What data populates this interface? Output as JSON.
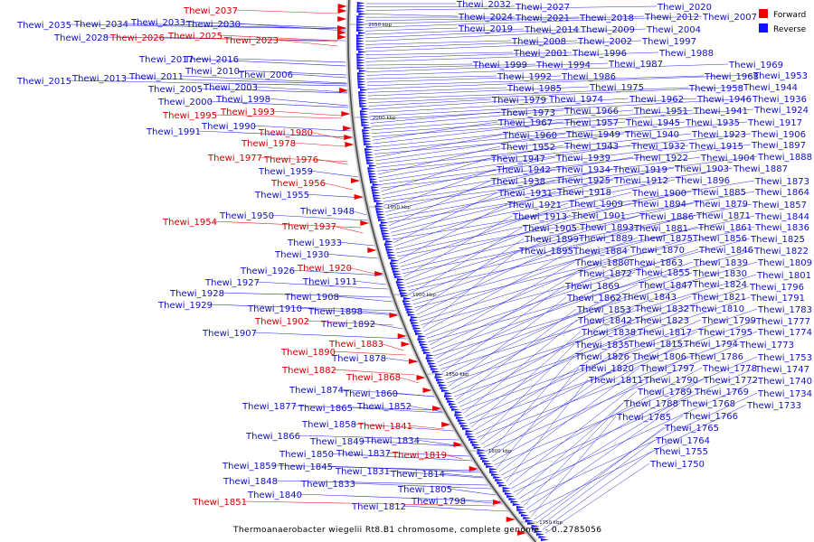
{
  "caption": "Thermoanaerobacter wiegelii Rt8.B1 chromosome, complete genome. - 0..2785056",
  "legend": [
    {
      "label": "Forward",
      "color": "#ee0000"
    },
    {
      "label": "Reverse",
      "color": "#1010ff"
    }
  ],
  "ticks": [
    "2050 kbp",
    "2000 kbp",
    "1950 kbp",
    "1900 kbp",
    "1850 kbp",
    "1800 kbp",
    "1750 kbp"
  ],
  "left_labels": [
    {
      "text": "Thewi_2037",
      "strand": "forward"
    },
    {
      "text": "Thewi_2035",
      "strand": "reverse"
    },
    {
      "text": "Thewi_2034",
      "strand": "reverse"
    },
    {
      "text": "Thewi_2033",
      "strand": "reverse"
    },
    {
      "text": "Thewi_2030",
      "strand": "reverse"
    },
    {
      "text": "Thewi_2028",
      "strand": "reverse"
    },
    {
      "text": "Thewi_2026",
      "strand": "forward"
    },
    {
      "text": "Thewi_2025",
      "strand": "forward"
    },
    {
      "text": "Thewi_2023",
      "strand": "forward"
    },
    {
      "text": "Thewi_2017",
      "strand": "reverse"
    },
    {
      "text": "Thewi_2016",
      "strand": "reverse"
    },
    {
      "text": "Thewi_2010",
      "strand": "reverse"
    },
    {
      "text": "Thewi_2015",
      "strand": "reverse"
    },
    {
      "text": "Thewi_2013",
      "strand": "reverse"
    },
    {
      "text": "Thewi_2011",
      "strand": "reverse"
    },
    {
      "text": "Thewi_2006",
      "strand": "reverse"
    },
    {
      "text": "Thewi_2005",
      "strand": "reverse"
    },
    {
      "text": "Thewi_2003",
      "strand": "reverse"
    },
    {
      "text": "Thewi_2000",
      "strand": "reverse"
    },
    {
      "text": "Thewi_1998",
      "strand": "reverse"
    },
    {
      "text": "Thewi_1995",
      "strand": "forward"
    },
    {
      "text": "Thewi_1993",
      "strand": "forward"
    },
    {
      "text": "Thewi_1990",
      "strand": "reverse"
    },
    {
      "text": "Thewi_1991",
      "strand": "reverse"
    },
    {
      "text": "Thewi_1980",
      "strand": "forward"
    },
    {
      "text": "Thewi_1978",
      "strand": "forward"
    },
    {
      "text": "Thewi_1977",
      "strand": "forward"
    },
    {
      "text": "Thewi_1976",
      "strand": "forward"
    },
    {
      "text": "Thewi_1959",
      "strand": "reverse"
    },
    {
      "text": "Thewi_1956",
      "strand": "forward"
    },
    {
      "text": "Thewi_1955",
      "strand": "reverse"
    },
    {
      "text": "Thewi_1948",
      "strand": "reverse"
    },
    {
      "text": "Thewi_1950",
      "strand": "reverse"
    },
    {
      "text": "Thewi_1954",
      "strand": "forward"
    },
    {
      "text": "Thewi_1937",
      "strand": "forward"
    },
    {
      "text": "Thewi_1933",
      "strand": "reverse"
    },
    {
      "text": "Thewi_1930",
      "strand": "reverse"
    },
    {
      "text": "Thewi_1926",
      "strand": "reverse"
    },
    {
      "text": "Thewi_1920",
      "strand": "forward"
    },
    {
      "text": "Thewi_1927",
      "strand": "reverse"
    },
    {
      "text": "Thewi_1911",
      "strand": "reverse"
    },
    {
      "text": "Thewi_1928",
      "strand": "reverse"
    },
    {
      "text": "Thewi_1908",
      "strand": "reverse"
    },
    {
      "text": "Thewi_1929",
      "strand": "reverse"
    },
    {
      "text": "Thewi_1910",
      "strand": "reverse"
    },
    {
      "text": "Thewi_1898",
      "strand": "reverse"
    },
    {
      "text": "Thewi_1902",
      "strand": "forward"
    },
    {
      "text": "Thewi_1892",
      "strand": "reverse"
    },
    {
      "text": "Thewi_1907",
      "strand": "reverse"
    },
    {
      "text": "Thewi_1883",
      "strand": "forward"
    },
    {
      "text": "Thewi_1890",
      "strand": "forward"
    },
    {
      "text": "Thewi_1878",
      "strand": "reverse"
    },
    {
      "text": "Thewi_1882",
      "strand": "forward"
    },
    {
      "text": "Thewi_1868",
      "strand": "forward"
    },
    {
      "text": "Thewi_1874",
      "strand": "reverse"
    },
    {
      "text": "Thewi_1860",
      "strand": "reverse"
    },
    {
      "text": "Thewi_1877",
      "strand": "reverse"
    },
    {
      "text": "Thewi_1865",
      "strand": "reverse"
    },
    {
      "text": "Thewi_1852",
      "strand": "reverse"
    },
    {
      "text": "Thewi_1858",
      "strand": "reverse"
    },
    {
      "text": "Thewi_1841",
      "strand": "forward"
    },
    {
      "text": "Thewi_1866",
      "strand": "reverse"
    },
    {
      "text": "Thewi_1849",
      "strand": "reverse"
    },
    {
      "text": "Thewi_1834",
      "strand": "reverse"
    },
    {
      "text": "Thewi_1850",
      "strand": "reverse"
    },
    {
      "text": "Thewi_1837",
      "strand": "reverse"
    },
    {
      "text": "Thewi_1819",
      "strand": "forward"
    },
    {
      "text": "Thewi_1859",
      "strand": "reverse"
    },
    {
      "text": "Thewi_1845",
      "strand": "reverse"
    },
    {
      "text": "Thewi_1831",
      "strand": "reverse"
    },
    {
      "text": "Thewi_1814",
      "strand": "reverse"
    },
    {
      "text": "Thewi_1848",
      "strand": "reverse"
    },
    {
      "text": "Thewi_1833",
      "strand": "reverse"
    },
    {
      "text": "Thewi_1805",
      "strand": "reverse"
    },
    {
      "text": "Thewi_1840",
      "strand": "reverse"
    },
    {
      "text": "Thewi_1798",
      "strand": "reverse"
    },
    {
      "text": "Thewi_1851",
      "strand": "forward"
    },
    {
      "text": "Thewi_1812",
      "strand": "reverse"
    }
  ],
  "right_labels": [
    {
      "text": "Thewi_2032",
      "strand": "reverse"
    },
    {
      "text": "Thewi_2027",
      "strand": "reverse"
    },
    {
      "text": "Thewi_2020",
      "strand": "reverse"
    },
    {
      "text": "Thewi_2024",
      "strand": "reverse"
    },
    {
      "text": "Thewi_2021",
      "strand": "reverse"
    },
    {
      "text": "Thewi_2018",
      "strand": "reverse"
    },
    {
      "text": "Thewi_2012",
      "strand": "reverse"
    },
    {
      "text": "Thewi_2007",
      "strand": "reverse"
    },
    {
      "text": "Thewi_2019",
      "strand": "reverse"
    },
    {
      "text": "Thewi_2014",
      "strand": "reverse"
    },
    {
      "text": "Thewi_2009",
      "strand": "reverse"
    },
    {
      "text": "Thewi_2004",
      "strand": "reverse"
    },
    {
      "text": "Thewi_2008",
      "strand": "reverse"
    },
    {
      "text": "Thewi_2002",
      "strand": "reverse"
    },
    {
      "text": "Thewi_1997",
      "strand": "reverse"
    },
    {
      "text": "Thewi_2001",
      "strand": "reverse"
    },
    {
      "text": "Thewi_1996",
      "strand": "reverse"
    },
    {
      "text": "Thewi_1988",
      "strand": "reverse"
    },
    {
      "text": "Thewi_1999",
      "strand": "reverse"
    },
    {
      "text": "Thewi_1994",
      "strand": "reverse"
    },
    {
      "text": "Thewi_1987",
      "strand": "reverse"
    },
    {
      "text": "Thewi_1969",
      "strand": "reverse"
    },
    {
      "text": "Thewi_1992",
      "strand": "reverse"
    },
    {
      "text": "Thewi_1986",
      "strand": "reverse"
    },
    {
      "text": "Thewi_1968",
      "strand": "reverse"
    },
    {
      "text": "Thewi_1953",
      "strand": "reverse"
    },
    {
      "text": "Thewi_1985",
      "strand": "reverse"
    },
    {
      "text": "Thewi_1975",
      "strand": "reverse"
    },
    {
      "text": "Thewi_1958",
      "strand": "reverse"
    },
    {
      "text": "Thewi_1944",
      "strand": "reverse"
    },
    {
      "text": "Thewi_1979",
      "strand": "reverse"
    },
    {
      "text": "Thewi_1974",
      "strand": "reverse"
    },
    {
      "text": "Thewi_1962",
      "strand": "reverse"
    },
    {
      "text": "Thewi_1946",
      "strand": "reverse"
    },
    {
      "text": "Thewi_1936",
      "strand": "reverse"
    },
    {
      "text": "Thewi_1973",
      "strand": "reverse"
    },
    {
      "text": "Thewi_1966",
      "strand": "reverse"
    },
    {
      "text": "Thewi_1951",
      "strand": "reverse"
    },
    {
      "text": "Thewi_1941",
      "strand": "reverse"
    },
    {
      "text": "Thewi_1924",
      "strand": "reverse"
    },
    {
      "text": "Thewi_1967",
      "strand": "reverse"
    },
    {
      "text": "Thewi_1957",
      "strand": "reverse"
    },
    {
      "text": "Thewi_1945",
      "strand": "reverse"
    },
    {
      "text": "Thewi_1935",
      "strand": "reverse"
    },
    {
      "text": "Thewi_1917",
      "strand": "reverse"
    },
    {
      "text": "Thewi_1960",
      "strand": "reverse"
    },
    {
      "text": "Thewi_1949",
      "strand": "reverse"
    },
    {
      "text": "Thewi_1940",
      "strand": "reverse"
    },
    {
      "text": "Thewi_1923",
      "strand": "reverse"
    },
    {
      "text": "Thewi_1906",
      "strand": "reverse"
    },
    {
      "text": "Thewi_1952",
      "strand": "reverse"
    },
    {
      "text": "Thewi_1943",
      "strand": "reverse"
    },
    {
      "text": "Thewi_1932",
      "strand": "reverse"
    },
    {
      "text": "Thewi_1915",
      "strand": "reverse"
    },
    {
      "text": "Thewi_1897",
      "strand": "reverse"
    },
    {
      "text": "Thewi_1947",
      "strand": "reverse"
    },
    {
      "text": "Thewi_1939",
      "strand": "reverse"
    },
    {
      "text": "Thewi_1922",
      "strand": "reverse"
    },
    {
      "text": "Thewi_1904",
      "strand": "reverse"
    },
    {
      "text": "Thewi_1888",
      "strand": "reverse"
    },
    {
      "text": "Thewi_1942",
      "strand": "reverse"
    },
    {
      "text": "Thewi_1934",
      "strand": "reverse"
    },
    {
      "text": "Thewi_1919",
      "strand": "reverse"
    },
    {
      "text": "Thewi_1903",
      "strand": "reverse"
    },
    {
      "text": "Thewi_1887",
      "strand": "reverse"
    },
    {
      "text": "Thewi_1938",
      "strand": "reverse"
    },
    {
      "text": "Thewi_1925",
      "strand": "reverse"
    },
    {
      "text": "Thewi_1912",
      "strand": "reverse"
    },
    {
      "text": "Thewi_1896",
      "strand": "reverse"
    },
    {
      "text": "Thewi_1873",
      "strand": "reverse"
    },
    {
      "text": "Thewi_1931",
      "strand": "reverse"
    },
    {
      "text": "Thewi_1918",
      "strand": "reverse"
    },
    {
      "text": "Thewi_1900",
      "strand": "reverse"
    },
    {
      "text": "Thewi_1885",
      "strand": "reverse"
    },
    {
      "text": "Thewi_1864",
      "strand": "reverse"
    },
    {
      "text": "Thewi_1921",
      "strand": "reverse"
    },
    {
      "text": "Thewi_1909",
      "strand": "reverse"
    },
    {
      "text": "Thewi_1894",
      "strand": "reverse"
    },
    {
      "text": "Thewi_1879",
      "strand": "reverse"
    },
    {
      "text": "Thewi_1857",
      "strand": "reverse"
    },
    {
      "text": "Thewi_1913",
      "strand": "reverse"
    },
    {
      "text": "Thewi_1901",
      "strand": "reverse"
    },
    {
      "text": "Thewi_1886",
      "strand": "reverse"
    },
    {
      "text": "Thewi_1871",
      "strand": "reverse"
    },
    {
      "text": "Thewi_1844",
      "strand": "reverse"
    },
    {
      "text": "Thewi_1905",
      "strand": "reverse"
    },
    {
      "text": "Thewi_1893",
      "strand": "reverse"
    },
    {
      "text": "Thewi_1881",
      "strand": "reverse"
    },
    {
      "text": "Thewi_1861",
      "strand": "reverse"
    },
    {
      "text": "Thewi_1836",
      "strand": "reverse"
    },
    {
      "text": "Thewi_1899",
      "strand": "reverse"
    },
    {
      "text": "Thewi_1889",
      "strand": "reverse"
    },
    {
      "text": "Thewi_1875",
      "strand": "reverse"
    },
    {
      "text": "Thewi_1856",
      "strand": "reverse"
    },
    {
      "text": "Thewi_1825",
      "strand": "reverse"
    },
    {
      "text": "Thewi_1895",
      "strand": "reverse"
    },
    {
      "text": "Thewi_1884",
      "strand": "reverse"
    },
    {
      "text": "Thewi_1870",
      "strand": "reverse"
    },
    {
      "text": "Thewi_1846",
      "strand": "reverse"
    },
    {
      "text": "Thewi_1822",
      "strand": "reverse"
    },
    {
      "text": "Thewi_1880",
      "strand": "reverse"
    },
    {
      "text": "Thewi_1863",
      "strand": "reverse"
    },
    {
      "text": "Thewi_1839",
      "strand": "reverse"
    },
    {
      "text": "Thewi_1809",
      "strand": "reverse"
    },
    {
      "text": "Thewi_1872",
      "strand": "reverse"
    },
    {
      "text": "Thewi_1855",
      "strand": "reverse"
    },
    {
      "text": "Thewi_1830",
      "strand": "reverse"
    },
    {
      "text": "Thewi_1801",
      "strand": "reverse"
    },
    {
      "text": "Thewi_1869",
      "strand": "reverse"
    },
    {
      "text": "Thewi_1847",
      "strand": "reverse"
    },
    {
      "text": "Thewi_1824",
      "strand": "reverse"
    },
    {
      "text": "Thewi_1796",
      "strand": "reverse"
    },
    {
      "text": "Thewi_1862",
      "strand": "reverse"
    },
    {
      "text": "Thewi_1843",
      "strand": "reverse"
    },
    {
      "text": "Thewi_1821",
      "strand": "reverse"
    },
    {
      "text": "Thewi_1791",
      "strand": "reverse"
    },
    {
      "text": "Thewi_1853",
      "strand": "reverse"
    },
    {
      "text": "Thewi_1832",
      "strand": "reverse"
    },
    {
      "text": "Thewi_1810",
      "strand": "reverse"
    },
    {
      "text": "Thewi_1783",
      "strand": "reverse"
    },
    {
      "text": "Thewi_1842",
      "strand": "reverse"
    },
    {
      "text": "Thewi_1823",
      "strand": "reverse"
    },
    {
      "text": "Thewi_1799",
      "strand": "reverse"
    },
    {
      "text": "Thewi_1777",
      "strand": "reverse"
    },
    {
      "text": "Thewi_1838",
      "strand": "reverse"
    },
    {
      "text": "Thewi_1817",
      "strand": "reverse"
    },
    {
      "text": "Thewi_1795",
      "strand": "reverse"
    },
    {
      "text": "Thewi_1774",
      "strand": "reverse"
    },
    {
      "text": "Thewi_1835",
      "strand": "reverse"
    },
    {
      "text": "Thewi_1815",
      "strand": "reverse"
    },
    {
      "text": "Thewi_1794",
      "strand": "reverse"
    },
    {
      "text": "Thewi_1773",
      "strand": "reverse"
    },
    {
      "text": "Thewi_1826",
      "strand": "reverse"
    },
    {
      "text": "Thewi_1806",
      "strand": "reverse"
    },
    {
      "text": "Thewi_1786",
      "strand": "reverse"
    },
    {
      "text": "Thewi_1753",
      "strand": "reverse"
    },
    {
      "text": "Thewi_1820",
      "strand": "reverse"
    },
    {
      "text": "Thewi_1797",
      "strand": "reverse"
    },
    {
      "text": "Thewi_1778",
      "strand": "reverse"
    },
    {
      "text": "Thewi_1747",
      "strand": "reverse"
    },
    {
      "text": "Thewi_1811",
      "strand": "reverse"
    },
    {
      "text": "Thewi_1790",
      "strand": "reverse"
    },
    {
      "text": "Thewi_1772",
      "strand": "reverse"
    },
    {
      "text": "Thewi_1740",
      "strand": "reverse"
    },
    {
      "text": "Thewi_1789",
      "strand": "reverse"
    },
    {
      "text": "Thewi_1769",
      "strand": "reverse"
    },
    {
      "text": "Thewi_1734",
      "strand": "reverse"
    },
    {
      "text": "Thewi_1788",
      "strand": "reverse"
    },
    {
      "text": "Thewi_1768",
      "strand": "reverse"
    },
    {
      "text": "Thewi_1733",
      "strand": "reverse"
    },
    {
      "text": "Thewi_1785",
      "strand": "reverse"
    },
    {
      "text": "Thewi_1766",
      "strand": "reverse"
    },
    {
      "text": "Thewi_1765",
      "strand": "reverse"
    },
    {
      "text": "Thewi_1764",
      "strand": "reverse"
    },
    {
      "text": "Thewi_1755",
      "strand": "reverse"
    },
    {
      "text": "Thewi_1750",
      "strand": "reverse"
    }
  ]
}
